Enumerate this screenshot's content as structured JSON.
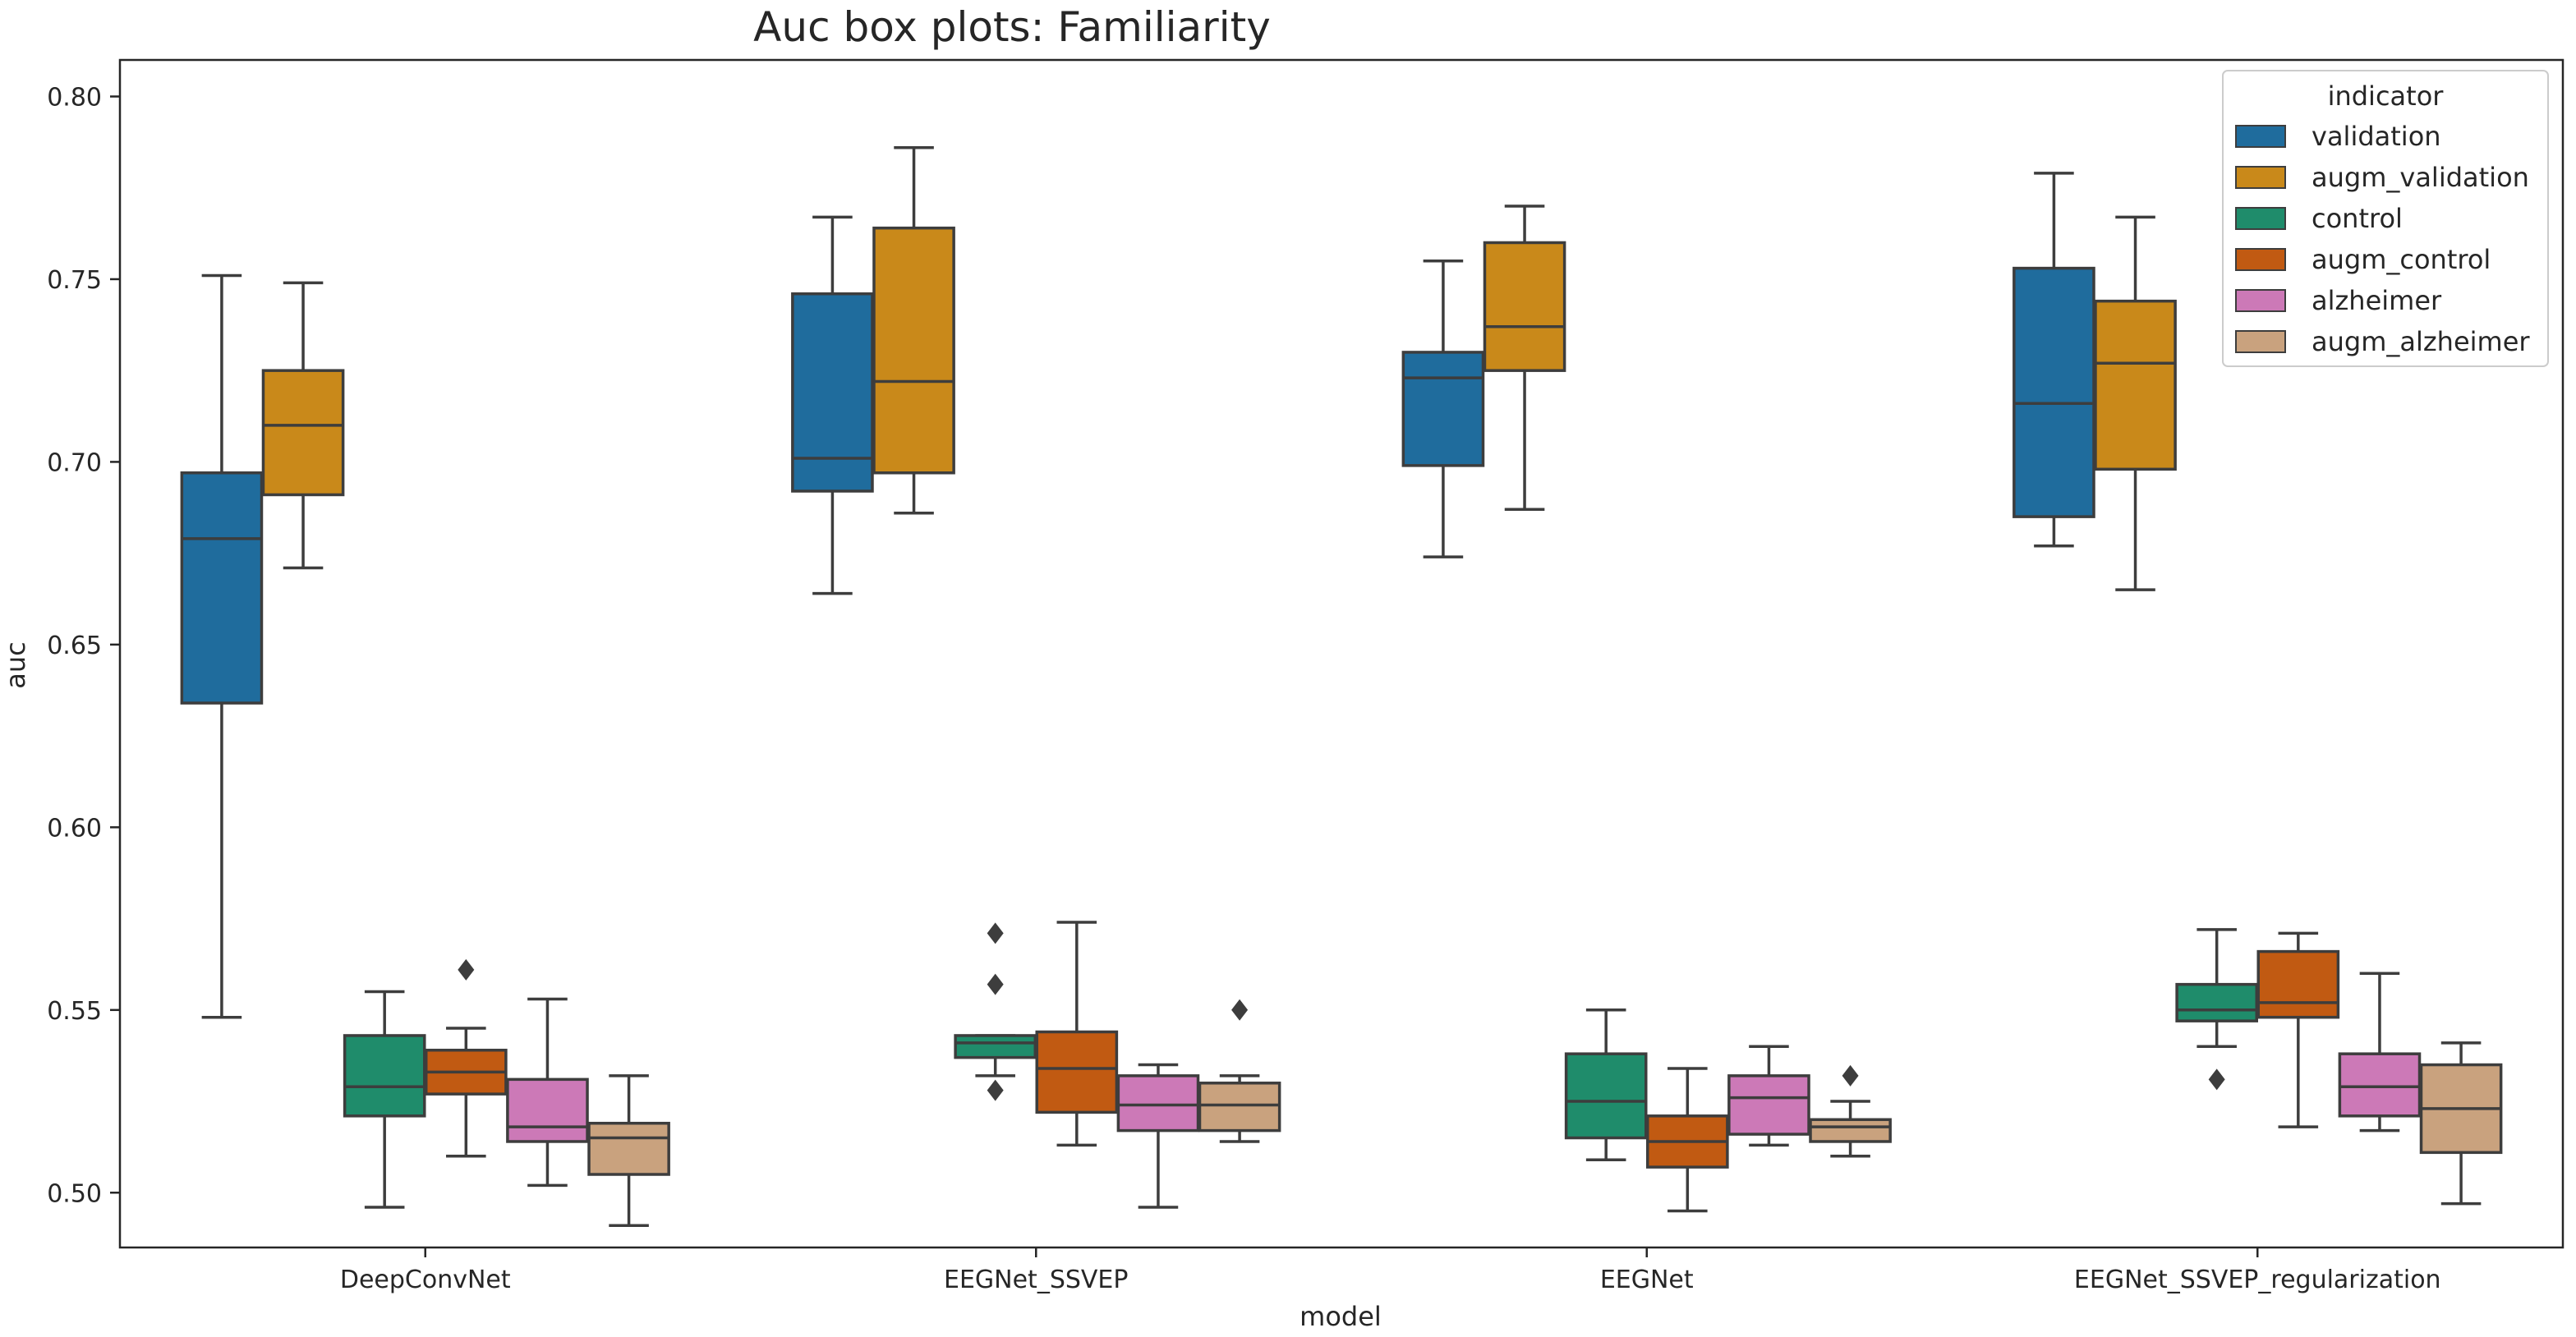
{
  "chart_data": {
    "type": "box",
    "title": "Auc box plots: Familiarity",
    "xlabel": "model",
    "ylabel": "auc",
    "ylim": [
      0.485,
      0.81
    ],
    "yticks": [
      0.5,
      0.55,
      0.6,
      0.65,
      0.7,
      0.75,
      0.8
    ],
    "ytick_labels": [
      "0.50",
      "0.55",
      "0.60",
      "0.65",
      "0.70",
      "0.75",
      "0.80"
    ],
    "grid": false,
    "categories": [
      "DeepConvNet",
      "EEGNet_SSVEP",
      "EEGNet",
      "EEGNet_SSVEP_regularization"
    ],
    "legend": {
      "title": "indicator",
      "position": "top-right"
    },
    "series": [
      {
        "name": "validation",
        "color": "#1F6C9D",
        "boxes": [
          {
            "whislo": 0.548,
            "q1": 0.634,
            "med": 0.679,
            "q3": 0.697,
            "whishi": 0.751,
            "fliers": []
          },
          {
            "whislo": 0.664,
            "q1": 0.692,
            "med": 0.701,
            "q3": 0.746,
            "whishi": 0.767,
            "fliers": []
          },
          {
            "whislo": 0.674,
            "q1": 0.699,
            "med": 0.723,
            "q3": 0.73,
            "whishi": 0.755,
            "fliers": []
          },
          {
            "whislo": 0.677,
            "q1": 0.685,
            "med": 0.716,
            "q3": 0.753,
            "whishi": 0.779,
            "fliers": []
          }
        ]
      },
      {
        "name": "augm_validation",
        "color": "#C9891A",
        "boxes": [
          {
            "whislo": 0.671,
            "q1": 0.691,
            "med": 0.71,
            "q3": 0.725,
            "whishi": 0.749,
            "fliers": []
          },
          {
            "whislo": 0.686,
            "q1": 0.697,
            "med": 0.722,
            "q3": 0.764,
            "whishi": 0.786,
            "fliers": []
          },
          {
            "whislo": 0.687,
            "q1": 0.725,
            "med": 0.737,
            "q3": 0.76,
            "whishi": 0.77,
            "fliers": []
          },
          {
            "whislo": 0.665,
            "q1": 0.698,
            "med": 0.727,
            "q3": 0.744,
            "whishi": 0.767,
            "fliers": []
          }
        ]
      },
      {
        "name": "control",
        "color": "#1F8C6B",
        "boxes": [
          {
            "whislo": 0.496,
            "q1": 0.521,
            "med": 0.529,
            "q3": 0.543,
            "whishi": 0.555,
            "fliers": []
          },
          {
            "whislo": 0.532,
            "q1": 0.537,
            "med": 0.541,
            "q3": 0.543,
            "whishi": 0.543,
            "fliers": [
              0.571,
              0.557,
              0.528
            ]
          },
          {
            "whislo": 0.509,
            "q1": 0.515,
            "med": 0.525,
            "q3": 0.538,
            "whishi": 0.55,
            "fliers": []
          },
          {
            "whislo": 0.54,
            "q1": 0.547,
            "med": 0.55,
            "q3": 0.557,
            "whishi": 0.572,
            "fliers": [
              0.531
            ]
          }
        ]
      },
      {
        "name": "augm_control",
        "color": "#C15A12",
        "boxes": [
          {
            "whislo": 0.51,
            "q1": 0.527,
            "med": 0.533,
            "q3": 0.539,
            "whishi": 0.545,
            "fliers": [
              0.561
            ]
          },
          {
            "whislo": 0.513,
            "q1": 0.522,
            "med": 0.534,
            "q3": 0.544,
            "whishi": 0.574,
            "fliers": []
          },
          {
            "whislo": 0.495,
            "q1": 0.507,
            "med": 0.514,
            "q3": 0.521,
            "whishi": 0.534,
            "fliers": []
          },
          {
            "whislo": 0.518,
            "q1": 0.548,
            "med": 0.552,
            "q3": 0.566,
            "whishi": 0.571,
            "fliers": []
          }
        ]
      },
      {
        "name": "alzheimer",
        "color": "#CC79B7",
        "boxes": [
          {
            "whislo": 0.502,
            "q1": 0.514,
            "med": 0.518,
            "q3": 0.531,
            "whishi": 0.553,
            "fliers": []
          },
          {
            "whislo": 0.496,
            "q1": 0.517,
            "med": 0.524,
            "q3": 0.532,
            "whishi": 0.535,
            "fliers": []
          },
          {
            "whislo": 0.513,
            "q1": 0.516,
            "med": 0.526,
            "q3": 0.532,
            "whishi": 0.54,
            "fliers": []
          },
          {
            "whislo": 0.517,
            "q1": 0.521,
            "med": 0.529,
            "q3": 0.538,
            "whishi": 0.56,
            "fliers": []
          }
        ]
      },
      {
        "name": "augm_alzheimer",
        "color": "#C9A27E",
        "boxes": [
          {
            "whislo": 0.491,
            "q1": 0.505,
            "med": 0.515,
            "q3": 0.519,
            "whishi": 0.532,
            "fliers": []
          },
          {
            "whislo": 0.514,
            "q1": 0.517,
            "med": 0.524,
            "q3": 0.53,
            "whishi": 0.532,
            "fliers": [
              0.55
            ]
          },
          {
            "whislo": 0.51,
            "q1": 0.514,
            "med": 0.518,
            "q3": 0.52,
            "whishi": 0.525,
            "fliers": [
              0.532
            ]
          },
          {
            "whislo": 0.497,
            "q1": 0.511,
            "med": 0.523,
            "q3": 0.535,
            "whishi": 0.541,
            "fliers": []
          }
        ]
      }
    ]
  }
}
